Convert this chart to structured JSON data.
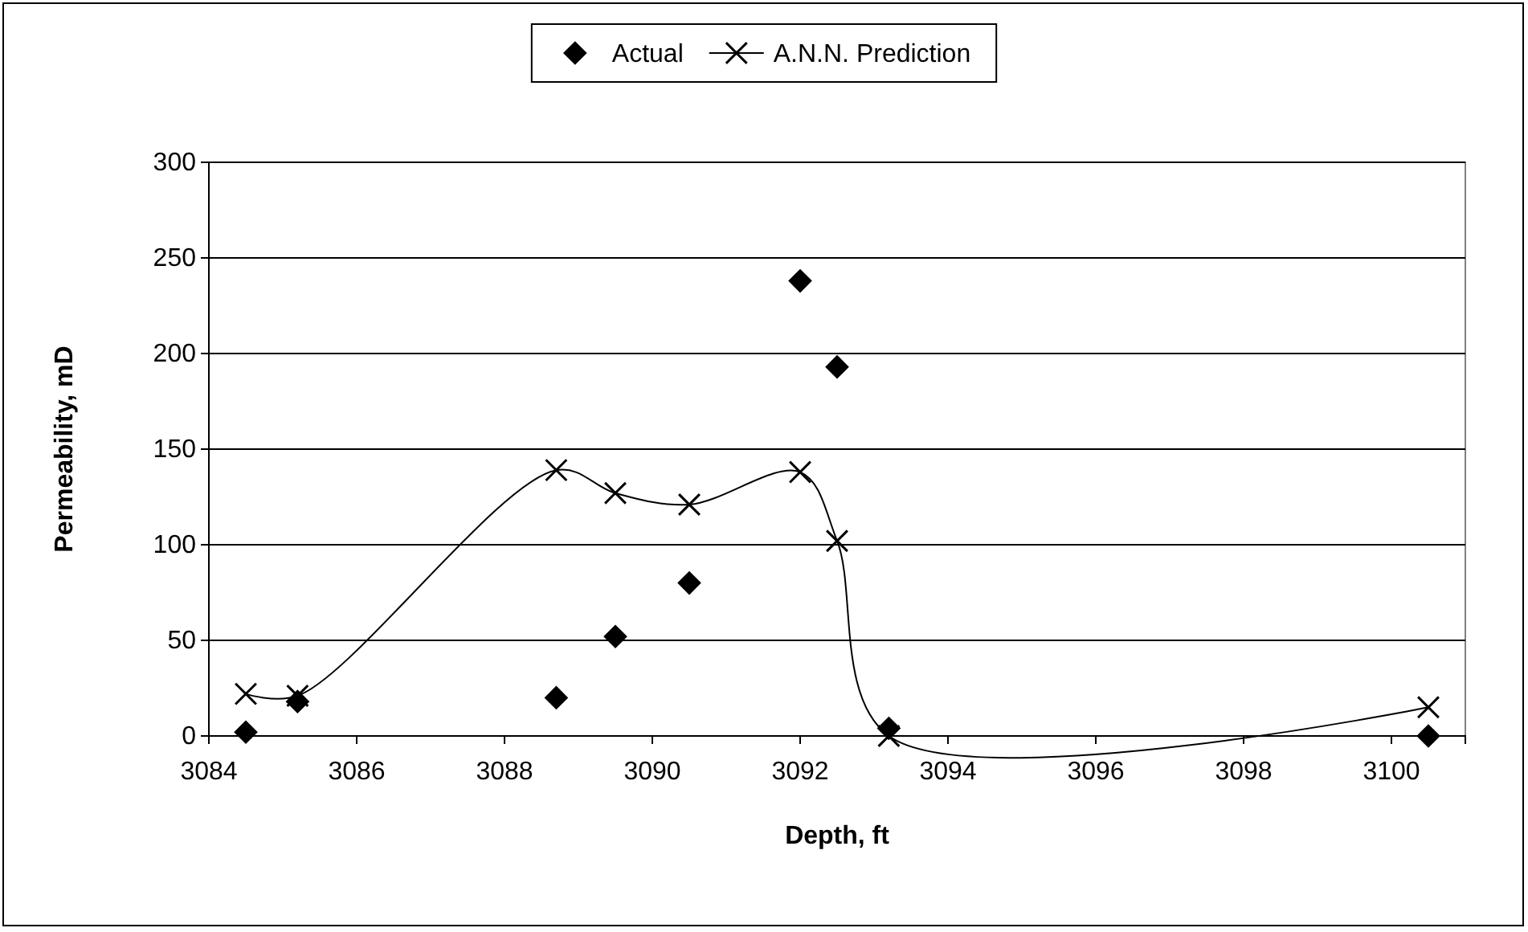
{
  "chart_data": {
    "type": "scatter",
    "xlabel": "Depth, ft",
    "ylabel": "Permeability, mD",
    "x": [
      3084.5,
      3085.2,
      3088.7,
      3089.5,
      3090.5,
      3092,
      3092.5,
      3093.2,
      3100.5
    ],
    "series": [
      {
        "name": "Actual",
        "color": "#000000",
        "marker": "diamond",
        "values": [
          2,
          18,
          20,
          52,
          80,
          238,
          193,
          4,
          0
        ]
      },
      {
        "name": "A.N.N. Prediction",
        "color": "#000000",
        "type": "line",
        "marker": "cross",
        "values": [
          22,
          21,
          139,
          127,
          121,
          138,
          102,
          0,
          15
        ]
      }
    ],
    "xlim": [
      3084,
      3101
    ],
    "xticks": [
      3084,
      3086,
      3088,
      3090,
      3092,
      3094,
      3096,
      3098,
      3100
    ],
    "ylim": [
      0,
      300
    ],
    "yticks": [
      0,
      50,
      100,
      150,
      200,
      250,
      300
    ],
    "grid": "y",
    "legend": "top"
  }
}
